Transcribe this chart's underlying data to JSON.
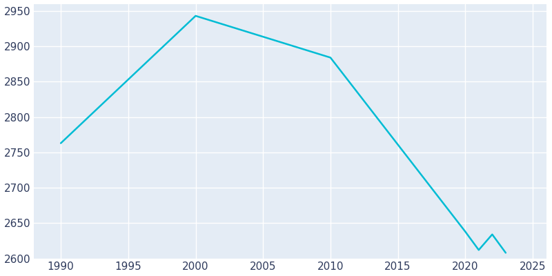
{
  "years": [
    1990,
    2000,
    2010,
    2020,
    2021,
    2022,
    2023
  ],
  "population": [
    2763,
    2943,
    2884,
    2638,
    2612,
    2634,
    2608
  ],
  "line_color": "#00BCD4",
  "bg_color": "#FFFFFF",
  "plot_bg_color": "#E4ECF5",
  "grid_color": "#FFFFFF",
  "tick_label_color": "#2E3A5C",
  "xlim": [
    1988,
    2026
  ],
  "ylim": [
    2600,
    2960
  ],
  "xticks": [
    1990,
    1995,
    2000,
    2005,
    2010,
    2015,
    2020,
    2025
  ],
  "yticks": [
    2600,
    2650,
    2700,
    2750,
    2800,
    2850,
    2900,
    2950
  ],
  "line_width": 1.8,
  "figsize": [
    8.0,
    4.0
  ],
  "dpi": 100
}
